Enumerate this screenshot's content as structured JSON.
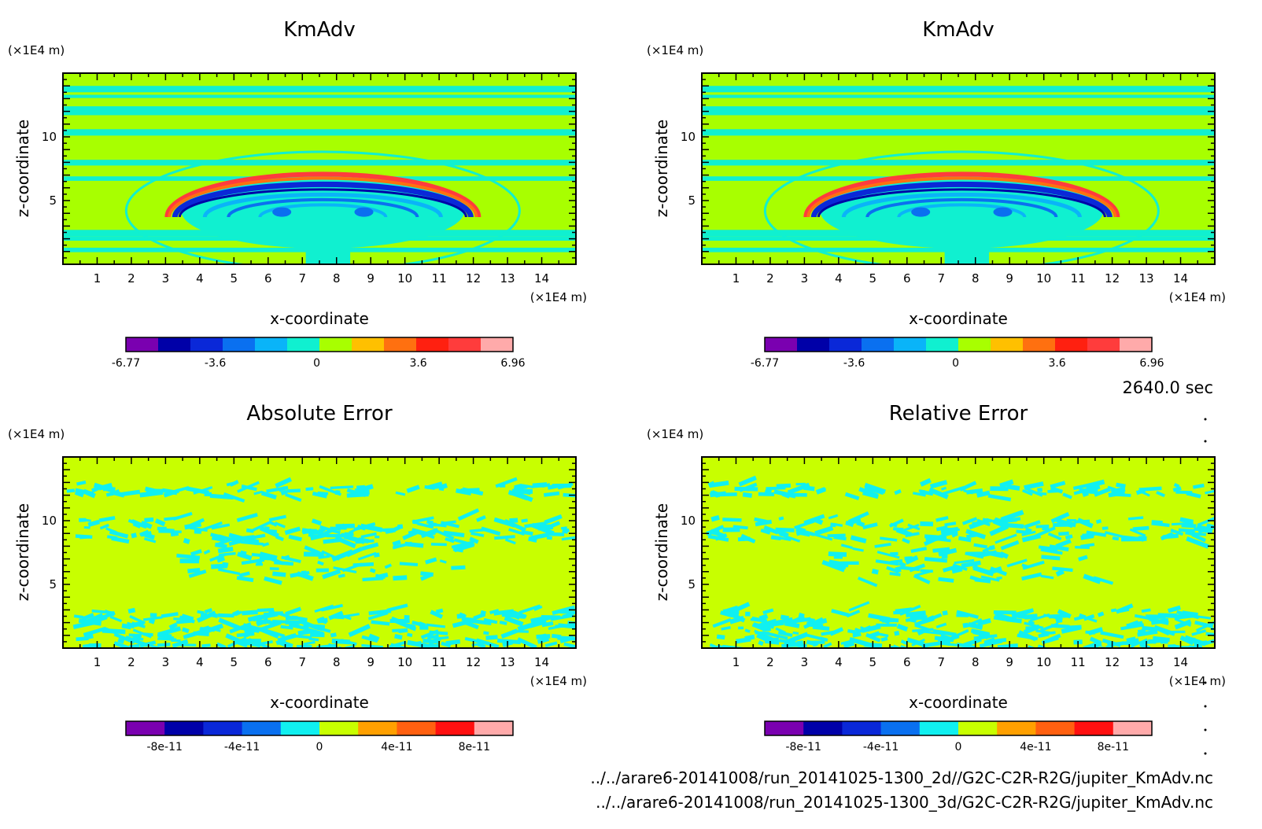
{
  "time_label": "2640.0 sec",
  "files": [
    "../../arare6-20141008/run_20141025-1300_2d//G2C-C2R-R2G/jupiter_KmAdv.nc",
    "../../arare6-20141008/run_20141025-1300_3d/G2C-C2R-R2G/jupiter_KmAdv.nc"
  ],
  "chart_data": [
    {
      "type": "heatmap",
      "title": "KmAdv",
      "xlabel": "x-coordinate",
      "ylabel": "z-coordinate",
      "x_unit": "(×1E4 m)",
      "y_unit": "(×1E4 m)",
      "xlim": [
        0,
        15
      ],
      "ylim": [
        0,
        15
      ],
      "x_ticks": [
        "1",
        "2",
        "3",
        "4",
        "5",
        "6",
        "7",
        "8",
        "9",
        "10",
        "11",
        "12",
        "13",
        "14"
      ],
      "y_ticks": [
        "5",
        "10"
      ],
      "pattern": "field",
      "colorbar": {
        "colors": [
          "#7a00b0",
          "#0000a8",
          "#0a28d8",
          "#0a70f0",
          "#0ab4f8",
          "#10f0d0",
          "#a8ff00",
          "#ffc000",
          "#ff7010",
          "#ff2010",
          "#ff3c3c",
          "#ffaaaa"
        ],
        "ticks": [
          "-6.77",
          "-3.6",
          "0",
          "3.6",
          "6.96"
        ],
        "min": -6.77,
        "max": 6.96
      }
    },
    {
      "type": "heatmap",
      "title": "KmAdv",
      "xlabel": "x-coordinate",
      "ylabel": "z-coordinate",
      "x_unit": "(×1E4 m)",
      "y_unit": "(×1E4 m)",
      "xlim": [
        0,
        15
      ],
      "ylim": [
        0,
        15
      ],
      "x_ticks": [
        "1",
        "2",
        "3",
        "4",
        "5",
        "6",
        "7",
        "8",
        "9",
        "10",
        "11",
        "12",
        "13",
        "14"
      ],
      "y_ticks": [
        "5",
        "10"
      ],
      "pattern": "field",
      "colorbar": {
        "colors": [
          "#7a00b0",
          "#0000a8",
          "#0a28d8",
          "#0a70f0",
          "#0ab4f8",
          "#10f0d0",
          "#a8ff00",
          "#ffc000",
          "#ff7010",
          "#ff2010",
          "#ff3c3c",
          "#ffaaaa"
        ],
        "ticks": [
          "-6.77",
          "-3.6",
          "0",
          "3.6",
          "6.96"
        ],
        "min": -6.77,
        "max": 6.96
      }
    },
    {
      "type": "heatmap",
      "title": "Absolute Error",
      "xlabel": "x-coordinate",
      "ylabel": "z-coordinate",
      "x_unit": "(×1E4 m)",
      "y_unit": "(×1E4 m)",
      "xlim": [
        0,
        15
      ],
      "ylim": [
        0,
        15
      ],
      "x_ticks": [
        "1",
        "2",
        "3",
        "4",
        "5",
        "6",
        "7",
        "8",
        "9",
        "10",
        "11",
        "12",
        "13",
        "14"
      ],
      "y_ticks": [
        "5",
        "10"
      ],
      "pattern": "error",
      "colorbar": {
        "colors": [
          "#7a00b0",
          "#0000a8",
          "#0a28d8",
          "#0a70f0",
          "#10f0f0",
          "#c8ff00",
          "#ffa000",
          "#ff6010",
          "#ff1010",
          "#ffaaaa"
        ],
        "ticks": [
          "-8e-11",
          "-4e-11",
          "0",
          "4e-11",
          "8e-11"
        ],
        "min": -1e-10,
        "max": 1e-10
      }
    },
    {
      "type": "heatmap",
      "title": "Relative Error",
      "xlabel": "x-coordinate",
      "ylabel": "z-coordinate",
      "x_unit": "(×1E4 m)",
      "y_unit": "(×1E4 m)",
      "xlim": [
        0,
        15
      ],
      "ylim": [
        0,
        15
      ],
      "x_ticks": [
        "1",
        "2",
        "3",
        "4",
        "5",
        "6",
        "7",
        "8",
        "9",
        "10",
        "11",
        "12",
        "13",
        "14"
      ],
      "y_ticks": [
        "5",
        "10"
      ],
      "pattern": "error2",
      "colorbar": {
        "colors": [
          "#7a00b0",
          "#0000a8",
          "#0a28d8",
          "#0a70f0",
          "#10f0f0",
          "#c8ff00",
          "#ffa000",
          "#ff6010",
          "#ff1010",
          "#ffaaaa"
        ],
        "ticks": [
          "-8e-11",
          "-4e-11",
          "0",
          "4e-11",
          "8e-11"
        ],
        "min": -1e-10,
        "max": 1e-10
      }
    }
  ]
}
